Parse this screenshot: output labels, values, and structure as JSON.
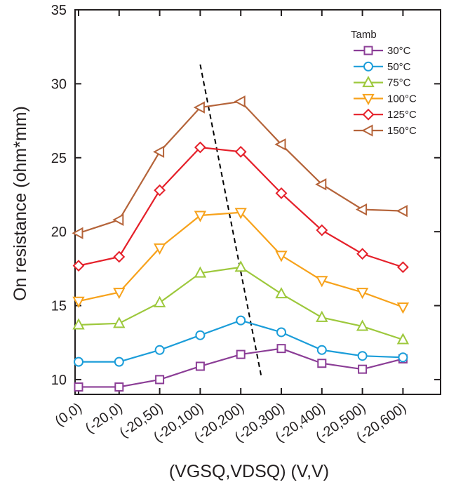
{
  "chart_data": {
    "type": "line",
    "xlabel": "(VGSQ,VDSQ) (V,V)",
    "ylabel": "On resistance (ohm*mm)",
    "ylim": [
      9,
      35
    ],
    "yticks": [
      10,
      15,
      20,
      25,
      30,
      35
    ],
    "categories": [
      "(0,0)",
      "(-20,0)",
      "(-20,50)",
      "(-20,100)",
      "(-20,200)",
      "(-20,300)",
      "(-20,400)",
      "(-20,500)",
      "(-20,600)"
    ],
    "legend_title": "Tamb",
    "legend_position": "top-right",
    "grid": false,
    "series": [
      {
        "name": "30°C",
        "color": "#8b3d96",
        "marker": "square",
        "values": [
          9.5,
          9.5,
          10.0,
          10.9,
          11.7,
          12.1,
          11.1,
          10.7,
          11.4
        ]
      },
      {
        "name": "50°C",
        "color": "#1b9dd9",
        "marker": "circle",
        "values": [
          11.2,
          11.2,
          12.0,
          13.0,
          14.0,
          13.2,
          12.0,
          11.6,
          11.5
        ]
      },
      {
        "name": "75°C",
        "color": "#9dc83c",
        "marker": "triangle-up",
        "values": [
          13.7,
          13.8,
          15.2,
          17.2,
          17.6,
          15.8,
          14.2,
          13.6,
          12.7
        ]
      },
      {
        "name": "100°C",
        "color": "#f7a21b",
        "marker": "triangle-down",
        "values": [
          15.3,
          15.9,
          18.9,
          21.1,
          21.3,
          18.4,
          16.7,
          15.9,
          14.9
        ]
      },
      {
        "name": "125°C",
        "color": "#e5202a",
        "marker": "diamond",
        "values": [
          17.7,
          18.3,
          22.8,
          25.7,
          25.4,
          22.6,
          20.1,
          18.5,
          17.6
        ]
      },
      {
        "name": "150°C",
        "color": "#b5643a",
        "marker": "triangle-left",
        "values": [
          19.9,
          20.8,
          25.4,
          28.4,
          28.8,
          25.9,
          23.2,
          21.5,
          21.4
        ]
      }
    ],
    "annotations": [
      {
        "type": "dashed-line",
        "color": "#000000",
        "from": {
          "x": 3.0,
          "y": 31.3
        },
        "to": {
          "x": 4.5,
          "y": 10.3
        }
      }
    ]
  }
}
